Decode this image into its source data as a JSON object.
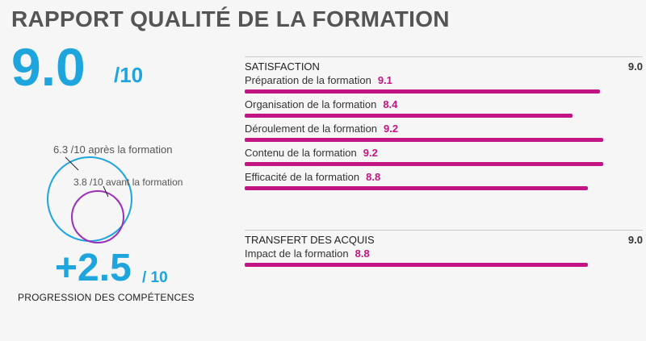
{
  "title": "RAPPORT QUALITÉ DE LA FORMATION",
  "overall": {
    "score": "9.0",
    "unit": "/10"
  },
  "competence": {
    "after_label": "6.3 /10 après la formation",
    "before_label": "3.8 /10 avant la formation",
    "after_value": 6.3,
    "before_value": 3.8,
    "progress_value": "+2.5",
    "progress_unit": "/ 10",
    "progress_label": "PROGRESSION DES COMPÉTENCES",
    "colors": {
      "after": "#1ea5de",
      "before": "#9b2fb8"
    }
  },
  "sections": [
    {
      "title": "SATISFACTION",
      "score": "9.0",
      "items": [
        {
          "label": "Préparation de la formation",
          "value": "9.1"
        },
        {
          "label": "Organisation de la formation",
          "value": "8.4"
        },
        {
          "label": "Déroulement de la formation",
          "value": "9.2"
        },
        {
          "label": "Contenu de la formation",
          "value": "9.2"
        },
        {
          "label": "Efficacité de la formation",
          "value": "8.8"
        }
      ]
    },
    {
      "title": "TRANSFERT DES ACQUIS",
      "score": "9.0",
      "items": [
        {
          "label": "Impact de la formation",
          "value": "8.8"
        }
      ]
    }
  ],
  "colors": {
    "accent_blue": "#1ea5de",
    "accent_magenta": "#c21483"
  }
}
